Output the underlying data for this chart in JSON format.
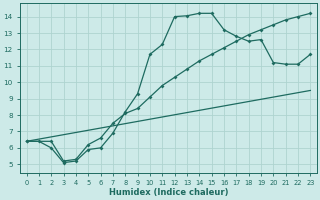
{
  "xlabel": "Humidex (Indice chaleur)",
  "bg_color": "#cdeae8",
  "grid_color": "#aed4d0",
  "line_color": "#1e6b60",
  "line1_x": [
    0,
    1,
    2,
    3,
    4,
    5,
    6,
    7,
    8,
    9,
    10,
    11,
    12,
    13,
    14,
    15,
    16,
    17,
    18,
    19,
    20,
    21,
    22,
    23
  ],
  "line1_y": [
    6.4,
    6.4,
    6.0,
    5.1,
    5.2,
    5.9,
    6.0,
    6.9,
    8.2,
    9.3,
    11.7,
    12.3,
    14.0,
    14.05,
    14.2,
    14.2,
    13.2,
    12.8,
    12.5,
    12.6,
    11.2,
    11.1,
    11.1,
    11.7
  ],
  "line2_x": [
    0,
    2,
    3,
    4,
    5,
    6,
    7,
    8,
    9,
    10,
    11,
    12,
    13,
    14,
    15,
    16,
    17,
    18,
    19,
    20,
    21,
    22,
    23
  ],
  "line2_y": [
    6.4,
    6.4,
    5.2,
    5.3,
    6.2,
    6.6,
    7.5,
    8.1,
    8.4,
    9.1,
    9.8,
    10.3,
    10.8,
    11.3,
    11.7,
    12.1,
    12.5,
    12.9,
    13.2,
    13.5,
    13.8,
    14.0,
    14.2
  ],
  "line3_x": [
    0,
    23
  ],
  "line3_y": [
    6.4,
    9.5
  ],
  "xlim": [
    -0.5,
    23.5
  ],
  "ylim": [
    4.5,
    14.8
  ],
  "xticks": [
    0,
    1,
    2,
    3,
    4,
    5,
    6,
    7,
    8,
    9,
    10,
    11,
    12,
    13,
    14,
    15,
    16,
    17,
    18,
    19,
    20,
    21,
    22,
    23
  ],
  "yticks": [
    5,
    6,
    7,
    8,
    9,
    10,
    11,
    12,
    13,
    14
  ]
}
